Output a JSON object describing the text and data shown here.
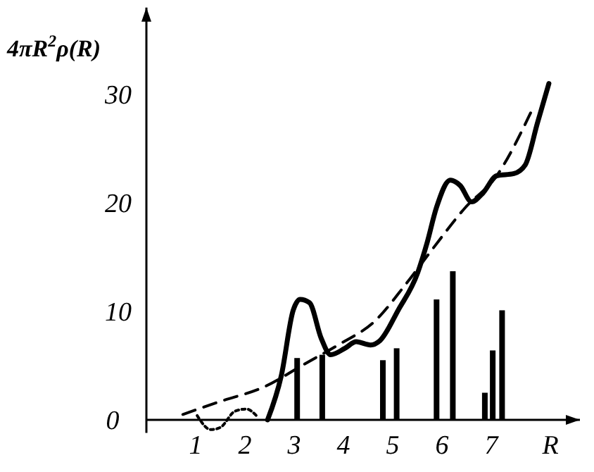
{
  "chart_data": {
    "type": "line",
    "xlabel": "R",
    "ylabel": "4πR$^{2}$ρ(R)",
    "xlim": [
      0,
      8.8
    ],
    "ylim": [
      -1.2,
      38
    ],
    "xticks": [
      1,
      2,
      3,
      4,
      5,
      6,
      7
    ],
    "yticks": [
      0,
      10,
      20,
      30
    ],
    "grid": false,
    "marker": "none",
    "series": [
      {
        "type": "bar",
        "color": "#000000",
        "x": [
          3.06,
          3.57,
          4.8,
          5.08,
          5.89,
          6.22,
          6.87,
          7.03,
          7.22
        ],
        "values": [
          5.7,
          6.0,
          5.5,
          6.6,
          11.1,
          13.7,
          2.5,
          6.4,
          10.1
        ]
      },
      {
        "color": "#000000",
        "line_style": "solid",
        "x": [
          2.46,
          2.74,
          2.98,
          3.12,
          3.31,
          3.55,
          3.74,
          4.03,
          4.26,
          4.55,
          4.74,
          5.11,
          5.51,
          5.69,
          5.89,
          6.17,
          6.37,
          6.6,
          6.83,
          7.11,
          7.46,
          7.69,
          7.94,
          8.17
        ],
        "values": [
          0,
          4.1,
          10.1,
          11.1,
          10.8,
          7.5,
          6.0,
          6.6,
          7.2,
          6.9,
          7.3,
          10.1,
          13.6,
          16.2,
          19.6,
          22.1,
          21.6,
          20.1,
          20.9,
          22.5,
          22.7,
          23.5,
          27.4,
          31.0
        ]
      },
      {
        "color": "#000000",
        "line_style": "dashed",
        "x": [
          0.74,
          1.5,
          2.37,
          3.23,
          3.89,
          4.66,
          5.23,
          5.8,
          6.46,
          7.11,
          7.8
        ],
        "values": [
          0.5,
          1.7,
          3.0,
          5.2,
          6.9,
          9.2,
          12.3,
          15.7,
          19.5,
          22.5,
          28.3
        ]
      },
      {
        "color": "#000000",
        "line_style": "dotted",
        "x": [
          1.03,
          1.31,
          1.5,
          1.8,
          2.03,
          2.23
        ],
        "values": [
          0.4,
          -0.9,
          -0.7,
          0.8,
          1.0,
          0.4
        ]
      }
    ]
  }
}
